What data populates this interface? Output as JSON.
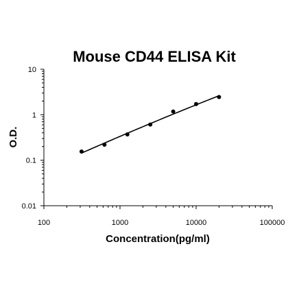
{
  "chart_data": {
    "type": "scatter",
    "title": "Mouse CD44 ELISA Kit",
    "xlabel": "Concentration(pg/ml)",
    "ylabel": "O.D.",
    "x_scale": "log",
    "y_scale": "log",
    "xlim": [
      100,
      100000
    ],
    "ylim": [
      0.01,
      10
    ],
    "x_ticks": [
      "100",
      "1000",
      "10000",
      "100000"
    ],
    "y_ticks": [
      "0.01",
      "0.1",
      "1",
      "10"
    ],
    "grid": false,
    "legend": "none",
    "series": [
      {
        "points": [
          {
            "x": 312.5,
            "y": 0.155
          },
          {
            "x": 625,
            "y": 0.22
          },
          {
            "x": 1250,
            "y": 0.37
          },
          {
            "x": 2500,
            "y": 0.61
          },
          {
            "x": 5000,
            "y": 1.18
          },
          {
            "x": 10000,
            "y": 1.72
          },
          {
            "x": 20000,
            "y": 2.45
          }
        ],
        "fit_curve": true,
        "color": "#000000"
      }
    ]
  }
}
